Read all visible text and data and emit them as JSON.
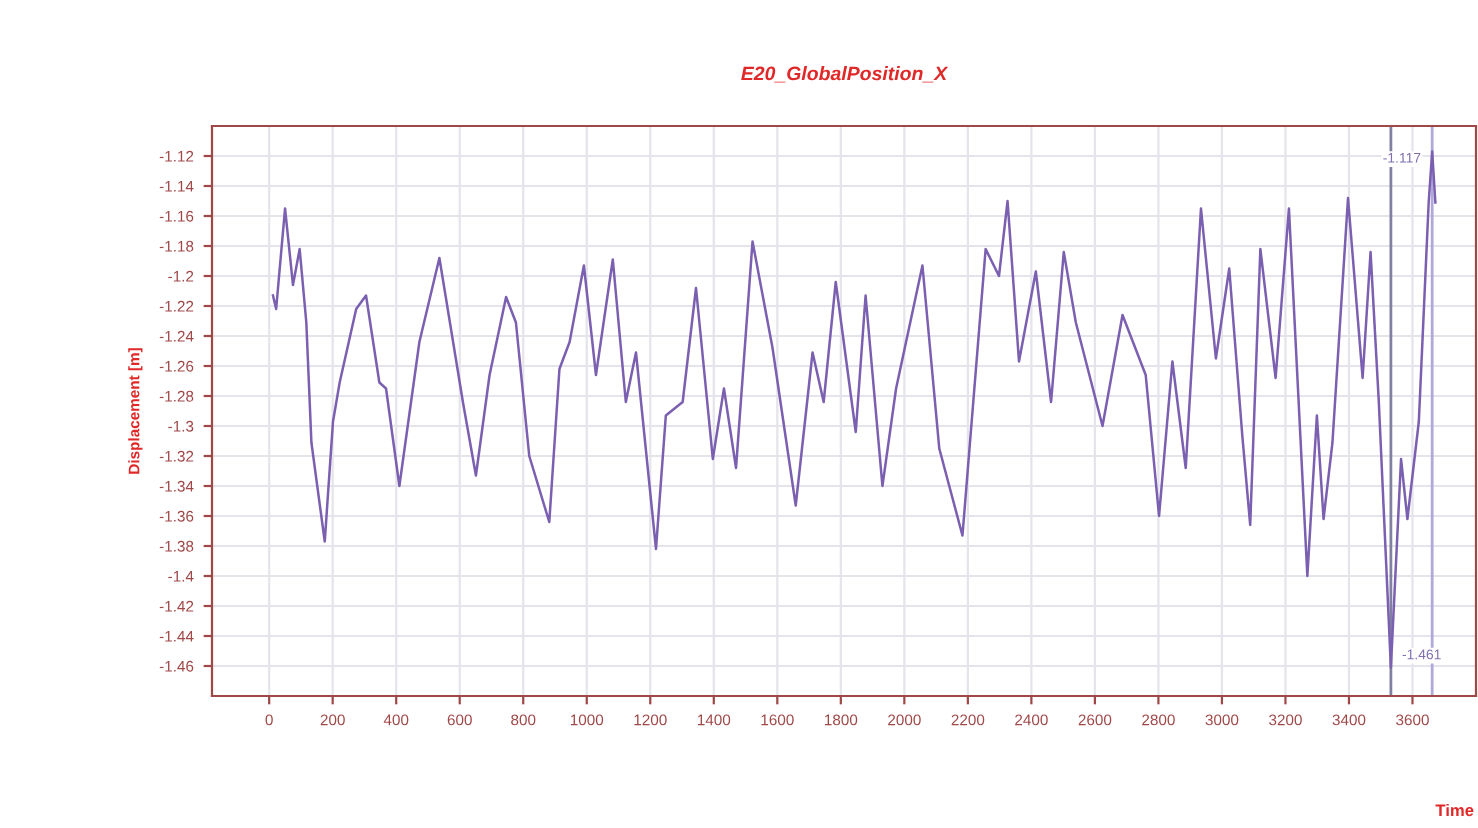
{
  "chart_data": {
    "type": "line",
    "title": "E20_GlobalPosition_X",
    "xlabel": "Time",
    "ylabel": "Displacement [m]",
    "series": [
      {
        "color": "#7b5fb0",
        "x": [
          12,
          22,
          50,
          75,
          96,
          117,
          133,
          175,
          201,
          222,
          274,
          305,
          347,
          368,
          410,
          473,
          536,
          610,
          651,
          694,
          746,
          777,
          819,
          882,
          914,
          946,
          991,
          1029,
          1082,
          1123,
          1155,
          1218,
          1249,
          1302,
          1344,
          1397,
          1432,
          1470,
          1522,
          1585,
          1658,
          1711,
          1746,
          1784,
          1847,
          1878,
          1931,
          1974,
          2057,
          2110,
          2183,
          2256,
          2298,
          2325,
          2361,
          2414,
          2462,
          2502,
          2540,
          2624,
          2687,
          2760,
          2802,
          2844,
          2886,
          2934,
          2981,
          3023,
          3064,
          3089,
          3121,
          3169,
          3211,
          3269,
          3299,
          3320,
          3348,
          3397,
          3443,
          3468,
          3494,
          3532,
          3564,
          3584,
          3620,
          3651,
          3662,
          3672
        ],
        "values": [
          -1.213,
          -1.222,
          -1.155,
          -1.206,
          -1.182,
          -1.231,
          -1.311,
          -1.377,
          -1.297,
          -1.271,
          -1.222,
          -1.213,
          -1.271,
          -1.275,
          -1.34,
          -1.244,
          -1.188,
          -1.284,
          -1.333,
          -1.266,
          -1.214,
          -1.231,
          -1.32,
          -1.364,
          -1.262,
          -1.244,
          -1.193,
          -1.266,
          -1.189,
          -1.284,
          -1.251,
          -1.382,
          -1.293,
          -1.284,
          -1.208,
          -1.322,
          -1.275,
          -1.328,
          -1.177,
          -1.248,
          -1.353,
          -1.251,
          -1.284,
          -1.204,
          -1.304,
          -1.213,
          -1.34,
          -1.275,
          -1.193,
          -1.315,
          -1.373,
          -1.182,
          -1.2,
          -1.15,
          -1.257,
          -1.197,
          -1.284,
          -1.184,
          -1.231,
          -1.3,
          -1.226,
          -1.266,
          -1.36,
          -1.257,
          -1.328,
          -1.155,
          -1.255,
          -1.195,
          -1.306,
          -1.366,
          -1.182,
          -1.268,
          -1.155,
          -1.4,
          -1.293,
          -1.362,
          -1.311,
          -1.148,
          -1.268,
          -1.184,
          -1.284,
          -1.461,
          -1.322,
          -1.362,
          -1.297,
          -1.151,
          -1.117,
          -1.151
        ]
      }
    ],
    "xlim": [
      -180,
      3800
    ],
    "xticks": [
      0,
      200,
      400,
      600,
      800,
      1000,
      1200,
      1400,
      1600,
      1800,
      2000,
      2200,
      2400,
      2600,
      2800,
      3000,
      3200,
      3400,
      3600
    ],
    "ylim": [
      -1.48,
      -1.1
    ],
    "yticks": [
      -1.12,
      -1.14,
      -1.16,
      -1.18,
      -1.2,
      -1.22,
      -1.24,
      -1.26,
      -1.28,
      -1.3,
      -1.32,
      -1.34,
      -1.36,
      -1.38,
      -1.4,
      -1.42,
      -1.44,
      -1.46
    ],
    "grid": true,
    "legend": false,
    "ref_lines": [
      {
        "axis": "x",
        "value": 3532,
        "color": "#8080a0"
      },
      {
        "axis": "x",
        "value": 3662,
        "color": "#b0a8d8"
      }
    ],
    "annotations": [
      {
        "text": "-1.461",
        "x": 3532,
        "y": -1.461
      },
      {
        "text": "-1.117",
        "x": 3662,
        "y": -1.117
      }
    ]
  }
}
